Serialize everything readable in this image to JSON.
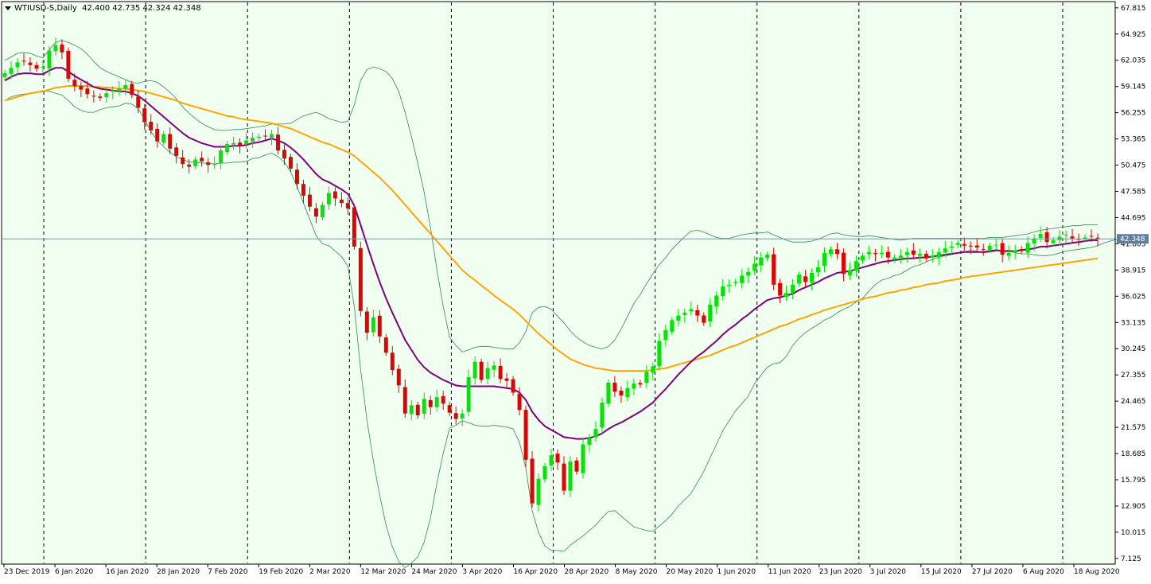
{
  "header": {
    "symbol": "WTIUSD-S,Daily",
    "ohlc": "42.400 42.735 42.324 42.348"
  },
  "colors": {
    "background": "#F0FFF0",
    "bull": "#00E600",
    "bear": "#E60000",
    "ma_fast": "#800080",
    "ma_slow": "#FFA500",
    "bands": "#2E8B57",
    "price_line": "#7B93AB",
    "price_label_bg": "#5F7F9F"
  },
  "chart_data": {
    "type": "line",
    "title": "WTIUSD-S,Daily",
    "price_label": "42.348",
    "ylim": [
      6.5,
      68.5
    ],
    "y_ticks": [
      "67.815",
      "64.925",
      "62.035",
      "59.145",
      "56.255",
      "53.365",
      "50.475",
      "47.585",
      "44.695",
      "41.805",
      "38.915",
      "36.025",
      "33.135",
      "30.245",
      "27.355",
      "24.465",
      "21.575",
      "18.685",
      "15.795",
      "12.905",
      "10.015",
      "7.125"
    ],
    "x_labels": [
      "23 Dec 2019",
      "6 Jan 2020",
      "16 Jan 2020",
      "28 Jan 2020",
      "7 Feb 2020",
      "19 Feb 2020",
      "2 Mar 2020",
      "12 Mar 2020",
      "24 Mar 2020",
      "3 Apr 2020",
      "16 Apr 2020",
      "28 Apr 2020",
      "8 May 2020",
      "20 May 2020",
      "1 Jun 2020",
      "11 Jun 2020",
      "23 Jun 2020",
      "3 Jul 2020",
      "15 Jul 2020",
      "27 Jul 2020",
      "6 Aug 2020",
      "18 Aug 2020"
    ],
    "close": [
      60.6,
      61.2,
      61.8,
      61.9,
      61.5,
      61.1,
      61.3,
      63.1,
      63.7,
      62.9,
      60.0,
      59.2,
      58.8,
      58.3,
      58.1,
      57.9,
      58.4,
      58.7,
      58.9,
      59.3,
      58.2,
      56.8,
      55.2,
      54.3,
      53.1,
      53.9,
      52.3,
      51.5,
      50.6,
      50.3,
      51.1,
      50.9,
      50.5,
      50.6,
      52.1,
      52.8,
      52.9,
      52.6,
      53.2,
      53.5,
      53.6,
      53.7,
      53.9,
      52.1,
      51.2,
      50.1,
      48.4,
      47.1,
      45.9,
      44.8,
      46.1,
      47.4,
      46.8,
      46.3,
      45.7,
      41.5,
      34.4,
      32.0,
      33.7,
      31.6,
      29.8,
      27.9,
      26.2,
      23.1,
      24.0,
      22.9,
      24.7,
      23.8,
      24.9,
      24.2,
      23.2,
      22.5,
      23.1,
      27.1,
      28.8,
      26.8,
      28.1,
      28.4,
      26.9,
      26.7,
      25.4,
      23.5,
      18.0,
      13.2,
      15.9,
      17.3,
      18.5,
      17.7,
      14.6,
      17.8,
      16.7,
      19.7,
      20.4,
      21.4,
      24.3,
      26.5,
      25.5,
      25.1,
      25.9,
      26.4,
      26.3,
      27.7,
      28.3,
      31.1,
      32.3,
      33.4,
      33.9,
      34.2,
      34.6,
      33.9,
      33.1,
      35.1,
      36.1,
      37.1,
      37.3,
      37.6,
      38.3,
      38.7,
      39.6,
      40.3,
      40.6,
      37.3,
      36.1,
      36.4,
      37.3,
      38.4,
      37.6,
      38.6,
      39.2,
      40.8,
      41.2,
      40.7,
      38.5,
      38.9,
      39.9,
      40.5,
      40.9,
      40.7,
      40.8,
      40.3,
      40.3,
      40.5,
      40.9,
      40.6,
      40.7,
      40.2,
      40.5,
      40.9,
      41.3,
      41.5,
      41.9,
      41.6,
      41.5,
      41.4,
      41.2,
      41.6,
      41.7,
      40.6,
      40.8,
      41.1,
      41.0,
      41.9,
      42.4,
      42.9,
      42.0,
      42.2,
      42.6,
      42.8,
      42.4,
      42.3,
      42.5,
      42.6,
      42.35
    ],
    "series": [
      {
        "values": [
          59.8,
          60.2,
          60.5,
          60.6,
          60.6,
          60.5,
          60.5,
          60.9,
          61.2,
          61.2,
          60.8,
          60.3,
          59.9,
          59.5,
          59.1,
          58.9,
          58.8,
          58.7,
          58.6,
          58.6,
          58.4,
          58.1,
          57.6,
          57.0,
          56.4,
          55.8,
          55.2,
          54.6,
          54.0,
          53.5,
          53.2,
          52.9,
          52.7,
          52.5,
          52.5,
          52.5,
          52.6,
          52.6,
          52.7,
          52.9,
          53.0,
          53.2,
          53.4,
          53.2,
          52.9,
          52.4,
          51.8,
          51.1,
          50.3,
          49.5,
          48.9,
          48.6,
          48.2,
          47.8,
          47.3,
          46.0,
          43.9,
          41.7,
          39.6,
          37.6,
          35.8,
          34.2,
          32.7,
          31.2,
          30.1,
          29.0,
          28.2,
          27.6,
          27.2,
          26.8,
          26.5,
          26.2,
          26.1,
          26.1,
          26.1,
          26.1,
          26.1,
          26.1,
          26.0,
          25.9,
          25.8,
          25.4,
          24.6,
          23.3,
          22.4,
          21.7,
          21.3,
          20.9,
          20.5,
          20.4,
          20.3,
          20.3,
          20.4,
          20.6,
          20.9,
          21.4,
          21.8,
          22.1,
          22.5,
          22.9,
          23.3,
          23.8,
          24.3,
          25.1,
          25.8,
          26.6,
          27.4,
          28.1,
          28.8,
          29.4,
          29.9,
          30.5,
          31.1,
          31.8,
          32.4,
          32.9,
          33.5,
          34.0,
          34.6,
          35.1,
          35.6,
          35.8,
          35.9,
          36.1,
          36.3,
          36.7,
          37.0,
          37.3,
          37.6,
          38.0,
          38.3,
          38.6,
          38.7,
          38.8,
          39.0,
          39.2,
          39.4,
          39.6,
          39.8,
          39.9,
          40.0,
          40.1,
          40.2,
          40.2,
          40.3,
          40.3,
          40.4,
          40.5,
          40.6,
          40.7,
          40.8,
          40.9,
          40.9,
          40.9,
          40.9,
          41.0,
          41.1,
          41.0,
          41.0,
          41.0,
          41.1,
          41.2,
          41.3,
          41.5,
          41.5,
          41.6,
          41.7,
          41.8,
          41.9,
          42.0,
          42.1,
          42.2,
          42.2
        ]
      },
      {
        "values": [
          57.6,
          57.8,
          58.0,
          58.2,
          58.4,
          58.5,
          58.6,
          58.8,
          59.0,
          59.1,
          59.2,
          59.2,
          59.2,
          59.2,
          59.1,
          59.1,
          59.0,
          59.0,
          58.9,
          58.9,
          58.8,
          58.7,
          58.6,
          58.4,
          58.2,
          58.0,
          57.8,
          57.6,
          57.3,
          57.1,
          56.9,
          56.7,
          56.5,
          56.3,
          56.1,
          55.9,
          55.8,
          55.6,
          55.5,
          55.4,
          55.3,
          55.2,
          55.1,
          54.9,
          54.7,
          54.5,
          54.2,
          53.9,
          53.6,
          53.3,
          53.0,
          52.8,
          52.5,
          52.2,
          51.9,
          51.5,
          50.9,
          50.3,
          49.7,
          49.1,
          48.4,
          47.7,
          46.9,
          46.1,
          45.3,
          44.5,
          43.7,
          42.9,
          42.1,
          41.3,
          40.5,
          39.7,
          38.9,
          38.3,
          37.8,
          37.2,
          36.7,
          36.1,
          35.6,
          35.1,
          34.6,
          34.0,
          33.3,
          32.6,
          31.9,
          31.3,
          30.7,
          30.1,
          29.6,
          29.1,
          28.8,
          28.5,
          28.3,
          28.1,
          28.0,
          27.9,
          27.8,
          27.8,
          27.8,
          27.8,
          27.8,
          27.8,
          27.9,
          28.0,
          28.1,
          28.3,
          28.5,
          28.7,
          28.9,
          29.1,
          29.3,
          29.5,
          29.8,
          30.1,
          30.4,
          30.6,
          30.9,
          31.2,
          31.5,
          31.8,
          32.1,
          32.4,
          32.7,
          32.9,
          33.2,
          33.5,
          33.7,
          34.0,
          34.2,
          34.5,
          34.7,
          34.9,
          35.1,
          35.3,
          35.5,
          35.7,
          35.9,
          36.0,
          36.2,
          36.4,
          36.5,
          36.7,
          36.8,
          37.0,
          37.1,
          37.3,
          37.4,
          37.5,
          37.7,
          37.8,
          37.9,
          38.1,
          38.2,
          38.3,
          38.4,
          38.5,
          38.6,
          38.7,
          38.8,
          38.9,
          39.0,
          39.1,
          39.2,
          39.3,
          39.4,
          39.5,
          39.6,
          39.7,
          39.8,
          39.9,
          40.0,
          40.1,
          40.2
        ]
      },
      {
        "values": [
          62.0,
          62.4,
          62.8,
          62.9,
          62.8,
          62.5,
          62.3,
          63.2,
          64.0,
          64.2,
          64.0,
          63.7,
          63.3,
          62.7,
          61.9,
          61.2,
          60.8,
          60.5,
          60.2,
          59.9,
          59.6,
          59.5,
          59.7,
          59.8,
          59.6,
          59.1,
          58.5,
          57.8,
          56.9,
          56.2,
          55.6,
          55.1,
          54.7,
          54.4,
          54.3,
          54.3,
          54.4,
          54.4,
          54.5,
          54.6,
          54.7,
          54.8,
          55.0,
          55.0,
          55.0,
          55.1,
          55.5,
          55.9,
          56.1,
          56.3,
          56.0,
          55.6,
          55.4,
          55.2,
          55.3,
          57.1,
          59.8,
          61.0,
          61.3,
          61.1,
          60.8,
          60.0,
          58.6,
          56.3,
          53.6,
          50.7,
          47.5,
          43.6,
          39.0,
          34.9,
          31.5,
          30.6,
          29.9,
          30.1,
          30.4,
          30.5,
          30.5,
          30.4,
          30.3,
          30.2,
          30.2,
          30.9,
          32.1,
          34.2,
          34.8,
          34.9,
          34.6,
          33.8,
          33.1,
          32.2,
          31.5,
          31.0,
          30.6,
          30.4,
          30.2,
          30.5,
          31.2,
          32.4,
          33.8,
          35.2,
          36.2,
          37.4,
          38.5,
          39.5,
          40.3,
          41.2,
          41.9,
          42.6,
          43.2,
          43.3,
          43.1,
          42.8,
          42.5,
          42.4,
          42.4,
          42.6,
          42.8,
          42.9,
          43.0,
          43.0,
          43.1,
          42.8,
          42.5,
          42.2,
          42.0,
          42.0,
          42.0,
          42.1,
          42.3,
          42.6,
          42.9,
          43.0,
          42.8,
          42.7,
          42.6,
          42.6,
          42.7,
          42.6,
          42.5,
          42.4,
          42.3,
          42.2,
          42.3,
          42.4,
          42.4,
          42.4,
          42.4,
          42.4,
          42.4,
          42.4,
          42.4,
          42.4,
          42.4,
          42.4,
          42.4,
          42.5,
          42.5,
          42.5,
          42.6,
          42.7,
          42.8,
          42.9,
          43.1,
          43.3,
          43.4,
          43.5,
          43.6,
          43.7,
          43.8,
          43.8,
          43.9,
          43.9,
          43.9
        ]
      },
      {
        "values": [
          57.6,
          58.0,
          58.2,
          58.3,
          58.4,
          58.5,
          58.7,
          58.6,
          58.4,
          58.2,
          57.6,
          56.9,
          56.5,
          56.3,
          56.3,
          56.6,
          56.8,
          56.9,
          57.0,
          57.3,
          57.2,
          56.7,
          55.5,
          54.2,
          53.2,
          52.5,
          51.9,
          51.4,
          51.1,
          50.8,
          50.8,
          50.7,
          50.7,
          50.6,
          50.7,
          50.7,
          50.8,
          50.8,
          50.9,
          51.2,
          51.3,
          51.6,
          51.8,
          51.4,
          50.8,
          49.7,
          48.1,
          46.3,
          44.5,
          42.7,
          41.8,
          41.6,
          41.0,
          40.4,
          39.3,
          34.9,
          28.0,
          22.4,
          17.9,
          14.1,
          10.8,
          8.4,
          6.8,
          6.1,
          6.6,
          7.3,
          8.9,
          11.6,
          15.4,
          18.7,
          21.5,
          21.8,
          22.3,
          22.1,
          21.8,
          21.7,
          21.7,
          21.8,
          21.7,
          21.6,
          21.4,
          19.9,
          17.1,
          12.4,
          10.0,
          8.5,
          8.0,
          8.0,
          7.9,
          8.6,
          9.1,
          9.6,
          10.2,
          10.8,
          11.6,
          12.3,
          12.4,
          11.8,
          11.2,
          10.6,
          10.4,
          10.2,
          10.1,
          10.7,
          11.3,
          12.0,
          12.9,
          13.6,
          14.3,
          15.5,
          16.7,
          18.2,
          19.7,
          21.2,
          22.3,
          23.4,
          24.2,
          25.0,
          26.4,
          27.3,
          28.2,
          28.6,
          28.7,
          29.4,
          30.6,
          31.4,
          32.0,
          32.5,
          32.9,
          33.4,
          33.7,
          34.2,
          34.6,
          34.9,
          35.4,
          35.8,
          36.6,
          37.3,
          37.8,
          38.0,
          38.3,
          38.5,
          38.9,
          39.3,
          39.5,
          39.8,
          40.1,
          40.3,
          40.5,
          40.6,
          40.8,
          40.9,
          41.1,
          41.0,
          40.8,
          40.9,
          41.0,
          41.0,
          41.1,
          40.8,
          40.7,
          40.7,
          40.6,
          40.5,
          40.5,
          40.6,
          40.8,
          41.0,
          41.1,
          41.2,
          41.3,
          41.4,
          41.6,
          41.9,
          42.1,
          42.3,
          42.4
        ]
      }
    ],
    "grid": "vertical dashed at month starts",
    "legend": "none"
  }
}
